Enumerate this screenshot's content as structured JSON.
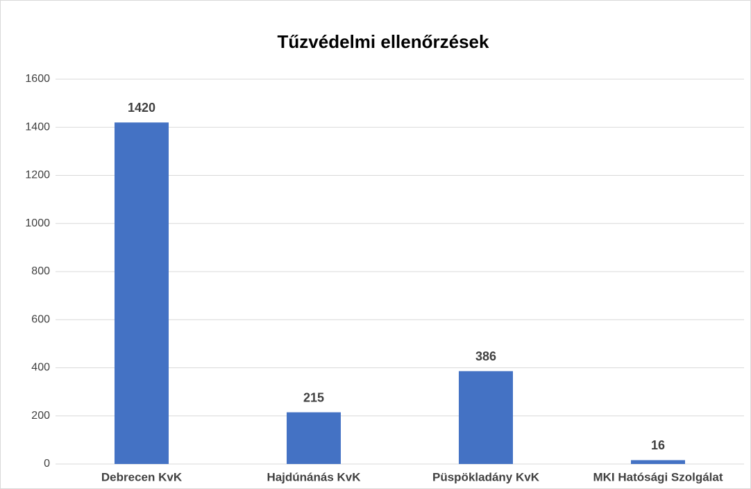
{
  "chart_data": {
    "type": "bar",
    "title": "Tűzvédelmi ellenőrzések",
    "categories": [
      "Debrecen KvK",
      "Hajdúnánás KvK",
      "Püspökladány KvK",
      "MKI Hatósági Szolgálat"
    ],
    "values": [
      1420,
      215,
      386,
      16
    ],
    "color": "#4472c4",
    "ylim": [
      0,
      1600
    ],
    "yticks": [
      0,
      200,
      400,
      600,
      800,
      1000,
      1200,
      1400,
      1600
    ],
    "grid": true
  }
}
